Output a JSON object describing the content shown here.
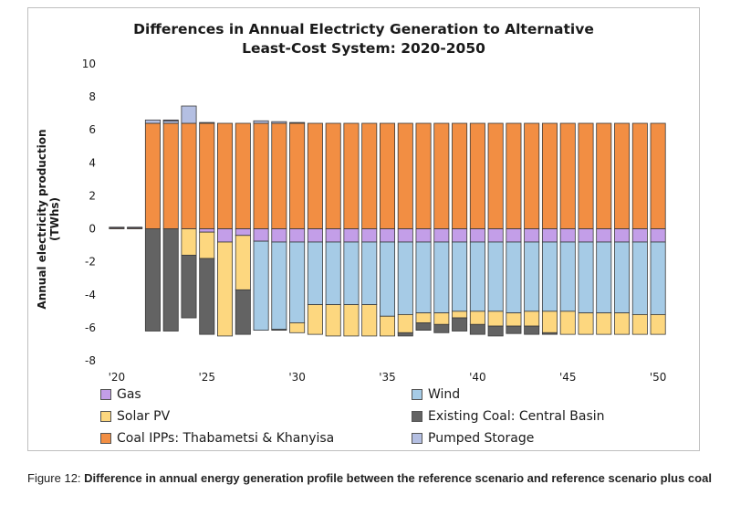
{
  "chart_data": {
    "type": "bar",
    "stacked": true,
    "title_lines": [
      "Differences in Annual Electricty Generation to Alternative",
      "Least-Cost System: 2020-2050"
    ],
    "ylabel": "Annual electricity production (TWhs)",
    "ylim": [
      -8,
      10
    ],
    "yticks": [
      10,
      8,
      6,
      4,
      2,
      0,
      -2,
      -4,
      -6,
      -8
    ],
    "xtick_labels": [
      {
        "year": 2020,
        "label": "'20"
      },
      {
        "year": 2025,
        "label": "'25"
      },
      {
        "year": 2030,
        "label": "'30"
      },
      {
        "year": 2035,
        "label": "'35"
      },
      {
        "year": 2040,
        "label": "'40"
      },
      {
        "year": 2045,
        "label": "'45"
      },
      {
        "year": 2050,
        "label": "'50"
      }
    ],
    "categories": [
      2020,
      2021,
      2022,
      2023,
      2024,
      2025,
      2026,
      2027,
      2028,
      2029,
      2030,
      2031,
      2032,
      2033,
      2034,
      2035,
      2036,
      2037,
      2038,
      2039,
      2040,
      2041,
      2042,
      2043,
      2044,
      2045,
      2046,
      2047,
      2048,
      2049,
      2050
    ],
    "series": [
      {
        "name": "Coal IPPs: Thabametsi & Khanyisa",
        "color": "#f28e43",
        "values": [
          0.05,
          0.05,
          6.4,
          6.4,
          6.4,
          6.4,
          6.4,
          6.4,
          6.4,
          6.4,
          6.4,
          6.4,
          6.4,
          6.4,
          6.4,
          6.4,
          6.4,
          6.4,
          6.4,
          6.4,
          6.4,
          6.4,
          6.4,
          6.4,
          6.4,
          6.4,
          6.4,
          6.4,
          6.4,
          6.4,
          6.4
        ]
      },
      {
        "name": "Pumped Storage",
        "color": "#b4bfe2",
        "values": [
          0,
          0,
          0.2,
          0.15,
          1.05,
          0.05,
          0,
          0,
          0.15,
          0.1,
          0.05,
          0,
          0,
          0,
          0,
          0,
          0,
          0,
          0,
          0,
          0,
          0,
          0,
          0,
          0,
          0,
          0,
          0,
          0,
          0,
          0
        ]
      },
      {
        "name": "Gas",
        "color": "#c39ee8",
        "values": [
          0.05,
          0.05,
          0,
          0.05,
          0,
          -0.2,
          -0.8,
          -0.4,
          -0.75,
          -0.8,
          -0.8,
          -0.8,
          -0.8,
          -0.8,
          -0.8,
          -0.8,
          -0.8,
          -0.8,
          -0.8,
          -0.8,
          -0.8,
          -0.8,
          -0.8,
          -0.8,
          -0.8,
          -0.8,
          -0.8,
          -0.8,
          -0.8,
          -0.8,
          -0.8
        ]
      },
      {
        "name": "Wind",
        "color": "#a6cbe6",
        "values": [
          0,
          0,
          0,
          0,
          0,
          0,
          0,
          0,
          -5.4,
          -5.3,
          -4.9,
          -3.8,
          -3.8,
          -3.8,
          -3.8,
          -4.5,
          -4.4,
          -4.3,
          -4.3,
          -4.2,
          -4.2,
          -4.2,
          -4.3,
          -4.2,
          -4.2,
          -4.2,
          -4.3,
          -4.3,
          -4.3,
          -4.4,
          -4.4
        ]
      },
      {
        "name": "Solar PV",
        "color": "#fdd77f",
        "values": [
          0,
          0,
          0,
          0,
          -1.6,
          -1.6,
          -5.7,
          -3.3,
          0,
          0,
          -0.6,
          -1.8,
          -1.9,
          -1.9,
          -1.9,
          -1.2,
          -1.1,
          -0.6,
          -0.7,
          -0.4,
          -0.8,
          -0.9,
          -0.8,
          -0.9,
          -1.3,
          -1.4,
          -1.3,
          -1.3,
          -1.3,
          -1.2,
          -1.2
        ]
      },
      {
        "name": "Existing Coal: Central Basin",
        "color": "#636363",
        "values": [
          0,
          0,
          -6.2,
          -6.2,
          -3.8,
          -4.6,
          0,
          -2.7,
          0,
          -0.05,
          0,
          0,
          0,
          0,
          0,
          0,
          -0.2,
          -0.45,
          -0.5,
          -0.8,
          -0.6,
          -0.6,
          -0.45,
          -0.5,
          -0.1,
          0,
          0,
          0,
          0,
          0,
          0
        ]
      }
    ]
  },
  "legend": {
    "items": [
      {
        "label": "Gas",
        "color": "#c39ee8"
      },
      {
        "label": "Wind",
        "color": "#a6cbe6"
      },
      {
        "label": "Solar PV",
        "color": "#fdd77f"
      },
      {
        "label": "Existing Coal: Central Basin",
        "color": "#636363"
      },
      {
        "label": "Coal IPPs: Thabametsi & Khanyisa",
        "color": "#f28e43"
      },
      {
        "label": "Pumped Storage",
        "color": "#b4bfe2"
      }
    ]
  },
  "caption": {
    "prefix": "Figure 12: ",
    "text": "Difference in annual energy generation profile between the reference scenario and reference scenario plus coal"
  }
}
